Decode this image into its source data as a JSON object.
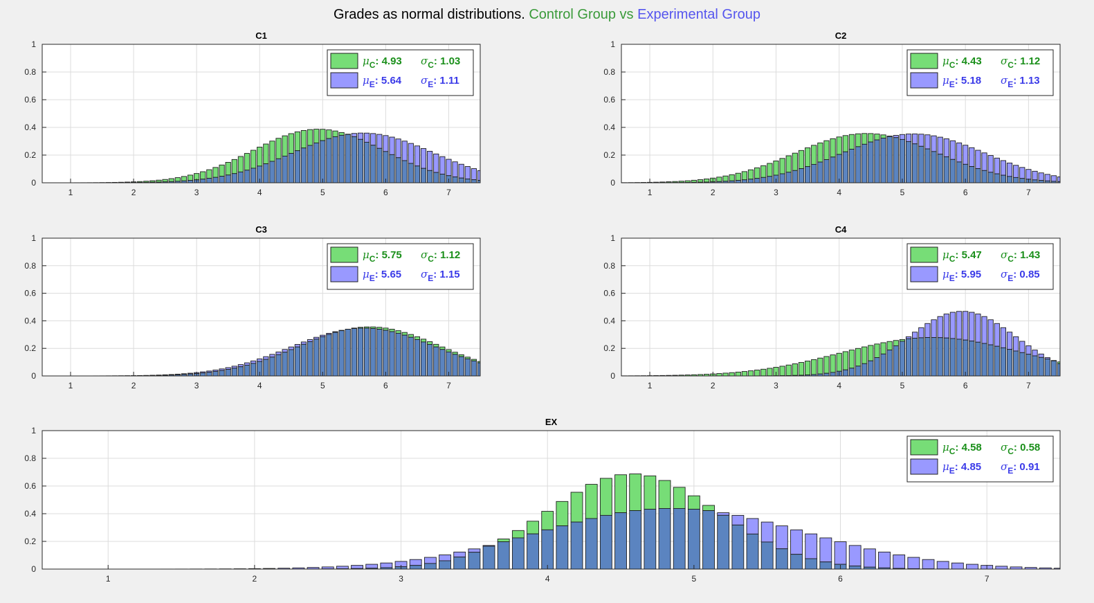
{
  "figure": {
    "title_prefix": "Grades as normal distributions.",
    "title_control": "Control Group",
    "title_vs": "vs",
    "title_experimental": "Experimental Group"
  },
  "colors": {
    "control_fill": "#77dd77",
    "experimental_fill": "#9999ff",
    "overlap_fill": "#5b84c0",
    "control_text": "#1a8f1a",
    "experimental_text": "#3a3ae8",
    "title_green": "#3a9a3a",
    "title_blue": "#5555ee"
  },
  "chart_data": [
    {
      "type": "bar",
      "title": "C1",
      "xlim": [
        0.55,
        7.5
      ],
      "ylim": [
        0,
        1
      ],
      "xticks": [
        1,
        2,
        3,
        4,
        5,
        6,
        7
      ],
      "yticks": [
        0,
        0.2,
        0.4,
        0.6,
        0.8,
        1
      ],
      "bar_step": 0.1,
      "grid": true,
      "legend_location": "top-right",
      "series": [
        {
          "name": "Control Group",
          "distribution": "normal",
          "mu": 4.93,
          "sigma": 1.03
        },
        {
          "name": "Experimental Group",
          "distribution": "normal",
          "mu": 5.64,
          "sigma": 1.11
        }
      ],
      "legend": {
        "control_mu": "4.93",
        "control_sigma": "1.03",
        "experimental_mu": "5.64",
        "experimental_sigma": "1.11"
      }
    },
    {
      "type": "bar",
      "title": "C2",
      "xlim": [
        0.55,
        7.5
      ],
      "ylim": [
        0,
        1
      ],
      "xticks": [
        1,
        2,
        3,
        4,
        5,
        6,
        7
      ],
      "yticks": [
        0,
        0.2,
        0.4,
        0.6,
        0.8,
        1
      ],
      "bar_step": 0.1,
      "grid": true,
      "legend_location": "top-right",
      "series": [
        {
          "name": "Control Group",
          "distribution": "normal",
          "mu": 4.43,
          "sigma": 1.12
        },
        {
          "name": "Experimental Group",
          "distribution": "normal",
          "mu": 5.18,
          "sigma": 1.13
        }
      ],
      "legend": {
        "control_mu": "4.43",
        "control_sigma": "1.12",
        "experimental_mu": "5.18",
        "experimental_sigma": "1.13"
      }
    },
    {
      "type": "bar",
      "title": "C3",
      "xlim": [
        0.55,
        7.5
      ],
      "ylim": [
        0,
        1
      ],
      "xticks": [
        1,
        2,
        3,
        4,
        5,
        6,
        7
      ],
      "yticks": [
        0,
        0.2,
        0.4,
        0.6,
        0.8,
        1
      ],
      "bar_step": 0.1,
      "grid": true,
      "legend_location": "top-right",
      "series": [
        {
          "name": "Control Group",
          "distribution": "normal",
          "mu": 5.75,
          "sigma": 1.12
        },
        {
          "name": "Experimental Group",
          "distribution": "normal",
          "mu": 5.65,
          "sigma": 1.15
        }
      ],
      "legend": {
        "control_mu": "5.75",
        "control_sigma": "1.12",
        "experimental_mu": "5.65",
        "experimental_sigma": "1.15"
      }
    },
    {
      "type": "bar",
      "title": "C4",
      "xlim": [
        0.55,
        7.5
      ],
      "ylim": [
        0,
        1
      ],
      "xticks": [
        1,
        2,
        3,
        4,
        5,
        6,
        7
      ],
      "yticks": [
        0,
        0.2,
        0.4,
        0.6,
        0.8,
        1
      ],
      "bar_step": 0.1,
      "grid": true,
      "legend_location": "top-right",
      "series": [
        {
          "name": "Control Group",
          "distribution": "normal",
          "mu": 5.47,
          "sigma": 1.43
        },
        {
          "name": "Experimental Group",
          "distribution": "normal",
          "mu": 5.95,
          "sigma": 0.85
        }
      ],
      "legend": {
        "control_mu": "5.47",
        "control_sigma": "1.43",
        "experimental_mu": "5.95",
        "experimental_sigma": "0.85"
      }
    },
    {
      "type": "bar",
      "title": "EX",
      "xlim": [
        0.55,
        7.5
      ],
      "ylim": [
        0,
        1
      ],
      "xticks": [
        1,
        2,
        3,
        4,
        5,
        6,
        7
      ],
      "yticks": [
        0,
        0.2,
        0.4,
        0.6,
        0.8,
        1
      ],
      "bar_step": 0.1,
      "grid": true,
      "legend_location": "top-right",
      "series": [
        {
          "name": "Control Group",
          "distribution": "normal",
          "mu": 4.58,
          "sigma": 0.58
        },
        {
          "name": "Experimental Group",
          "distribution": "normal",
          "mu": 4.85,
          "sigma": 0.91
        }
      ],
      "legend": {
        "control_mu": "4.58",
        "control_sigma": "0.58",
        "experimental_mu": "4.85",
        "experimental_sigma": "0.91"
      }
    }
  ]
}
